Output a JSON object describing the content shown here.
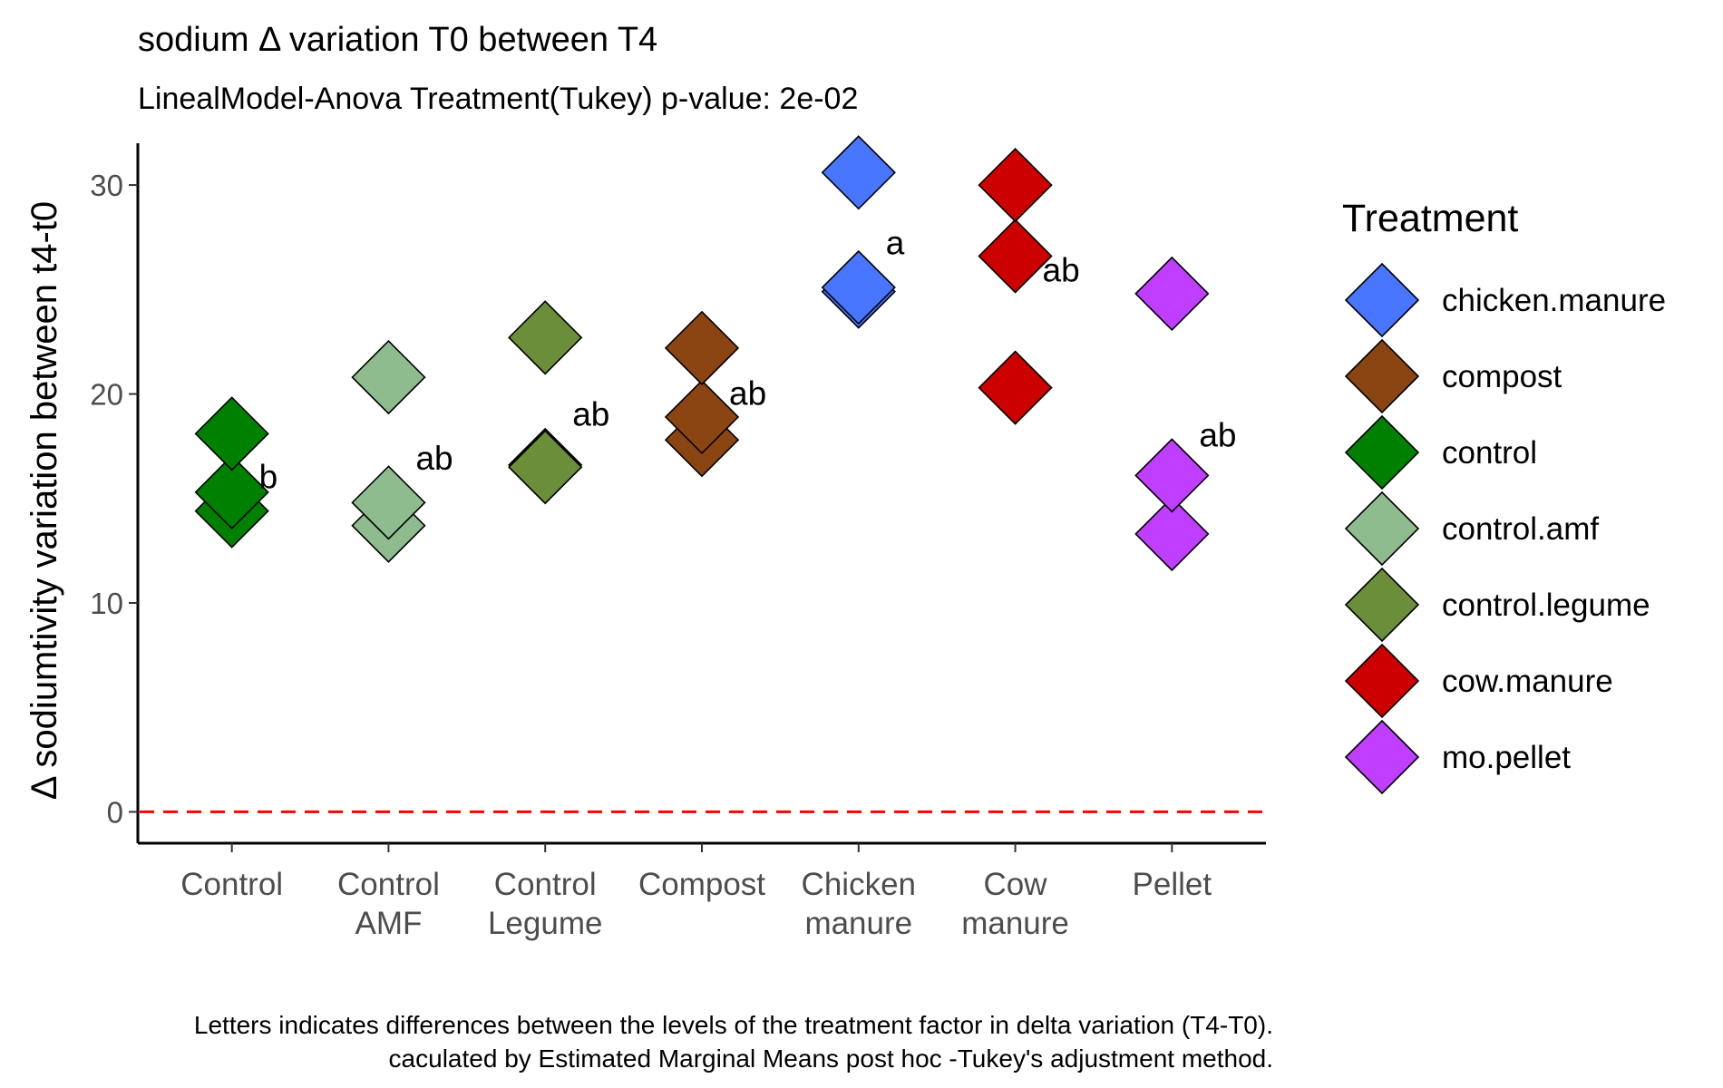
{
  "chart_data": {
    "type": "scatter",
    "title": "sodium Δ variation T0 between T4",
    "subtitle": "LinealModel-Anova Treatment(Tukey) p-value: 2e-02",
    "ylabel": "Δ sodiumtivity variation between t4-t0",
    "xlabel": "",
    "ylim": [
      -1.5,
      32
    ],
    "yticks": [
      0,
      10,
      20,
      30
    ],
    "reference_line": {
      "y": 0,
      "color": "#ff0000",
      "style": "dashed"
    },
    "categories": [
      "Control",
      "Control AMF",
      "Control Legume",
      "Compost",
      "Chicken manure",
      "Cow manure",
      "Pellet"
    ],
    "category_tick_labels": [
      [
        "Control"
      ],
      [
        "Control",
        "AMF"
      ],
      [
        "Control",
        "Legume"
      ],
      [
        "Compost"
      ],
      [
        "Chicken",
        "manure"
      ],
      [
        "Cow",
        "manure"
      ],
      [
        "Pellet"
      ]
    ],
    "series": [
      {
        "name": "control",
        "category": "Control",
        "color": "#008000",
        "values": [
          14.4,
          15.3,
          18.1
        ]
      },
      {
        "name": "control.amf",
        "category": "Control AMF",
        "color": "#8FBC8F",
        "values": [
          13.7,
          14.8,
          20.8
        ]
      },
      {
        "name": "control.legume",
        "category": "Control Legume",
        "color": "#6B8E3A",
        "values": [
          16.6,
          16.5,
          22.7
        ]
      },
      {
        "name": "compost",
        "category": "Compost",
        "color": "#8B4513",
        "values": [
          17.8,
          18.9,
          22.2
        ]
      },
      {
        "name": "chicken.manure",
        "category": "Chicken manure",
        "color": "#4876FF",
        "values": [
          24.9,
          25.1,
          30.6
        ]
      },
      {
        "name": "cow.manure",
        "category": "Cow manure",
        "color": "#CD0000",
        "values": [
          20.3,
          26.6,
          30.0
        ]
      },
      {
        "name": "mo.pellet",
        "category": "Pellet",
        "color": "#BF3EFF",
        "values": [
          13.3,
          16.1,
          24.8
        ]
      }
    ],
    "significance_letters": [
      {
        "category": "Control",
        "letter": "b",
        "y": 16.0
      },
      {
        "category": "Control AMF",
        "letter": "ab",
        "y": 16.9
      },
      {
        "category": "Control Legume",
        "letter": "ab",
        "y": 19.0
      },
      {
        "category": "Compost",
        "letter": "ab",
        "y": 20.0
      },
      {
        "category": "Chicken manure",
        "letter": "a",
        "y": 27.2
      },
      {
        "category": "Cow manure",
        "letter": "ab",
        "y": 25.9
      },
      {
        "category": "Pellet",
        "letter": "ab",
        "y": 18.0
      }
    ],
    "legend": {
      "title": "Treatment",
      "position": "right",
      "entries": [
        {
          "label": "chicken.manure",
          "color": "#4876FF"
        },
        {
          "label": "compost",
          "color": "#8B4513"
        },
        {
          "label": "control",
          "color": "#008000"
        },
        {
          "label": "control.amf",
          "color": "#8FBC8F"
        },
        {
          "label": "control.legume",
          "color": "#6B8E3A"
        },
        {
          "label": "cow.manure",
          "color": "#CD0000"
        },
        {
          "label": "mo.pellet",
          "color": "#BF3EFF"
        }
      ]
    },
    "caption": [
      "Letters indicates differences between the levels of the treatment factor in delta variation (T4-T0).",
      "caculated by Estimated Marginal Means post hoc -Tukey's adjustment method."
    ],
    "grid": false
  }
}
